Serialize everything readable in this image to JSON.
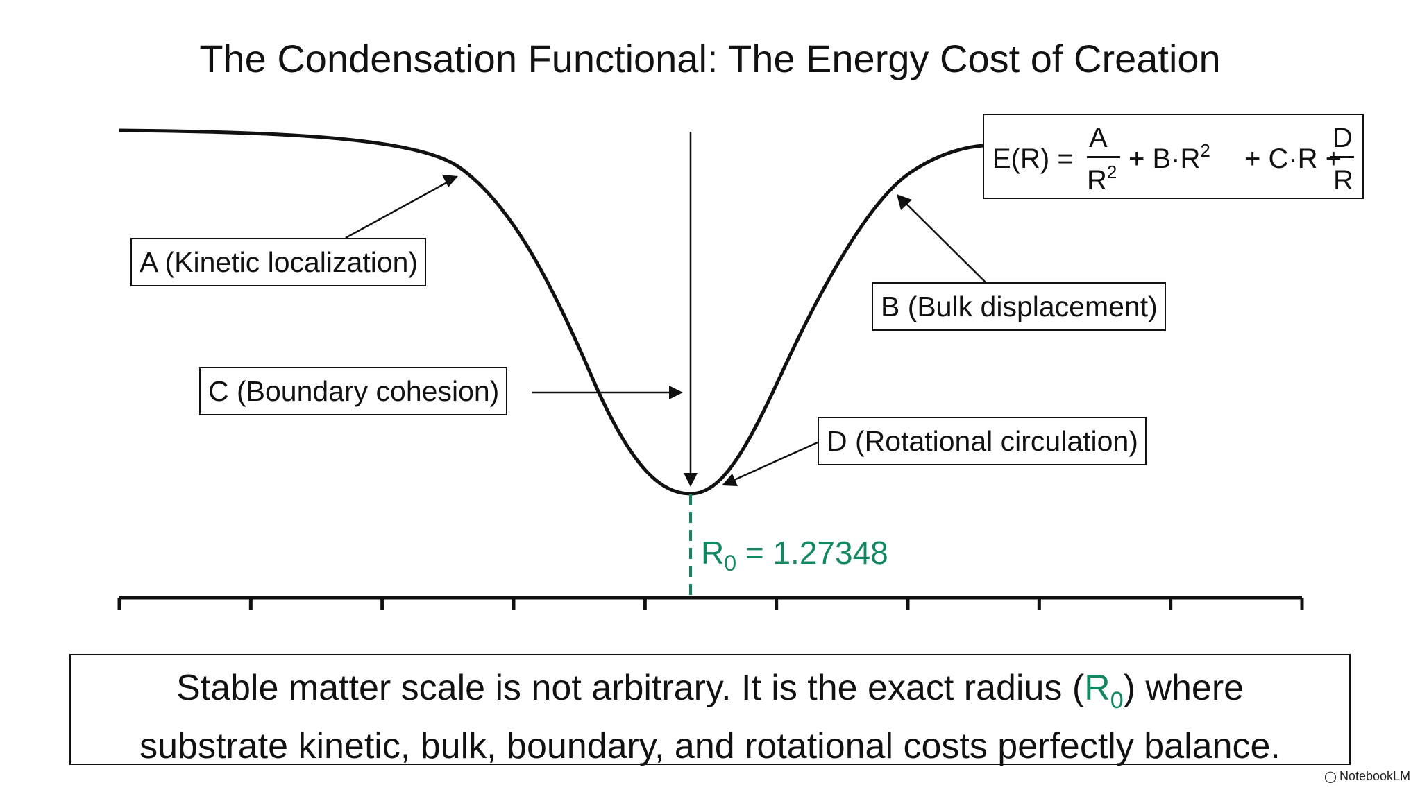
{
  "title": "The Condensation Functional: The Energy Cost of Creation",
  "formula": {
    "lhs": "E(R) =",
    "frac1_num": "A",
    "frac1_den_base": "R",
    "frac1_den_exp": "2",
    "middle_base": "+ B·R",
    "middle_exp": "2",
    "middle_rest": "+ C·R +",
    "frac2_num": "D",
    "frac2_den": "R"
  },
  "labels": {
    "a": "A (Kinetic localization)",
    "b": "B (Bulk displacement)",
    "c": "C (Boundary cohesion)",
    "d": "D (Rotational circulation)"
  },
  "r0": {
    "symbol": "R",
    "subscript": "0",
    "equals_value": "= 1.27348",
    "color": "#13875f"
  },
  "summary": {
    "line1_before": "Stable matter scale is not arbitrary. It is the exact radius (",
    "r_symbol": "R",
    "r_sub": "0",
    "line1_after": ") where",
    "line2": "substrate kinetic, bulk, boundary, and rotational costs perfectly balance."
  },
  "axis": {
    "tick_count": 10
  },
  "brand": {
    "icon": "notebooklm-logo-icon",
    "text": "NotebookLM"
  }
}
